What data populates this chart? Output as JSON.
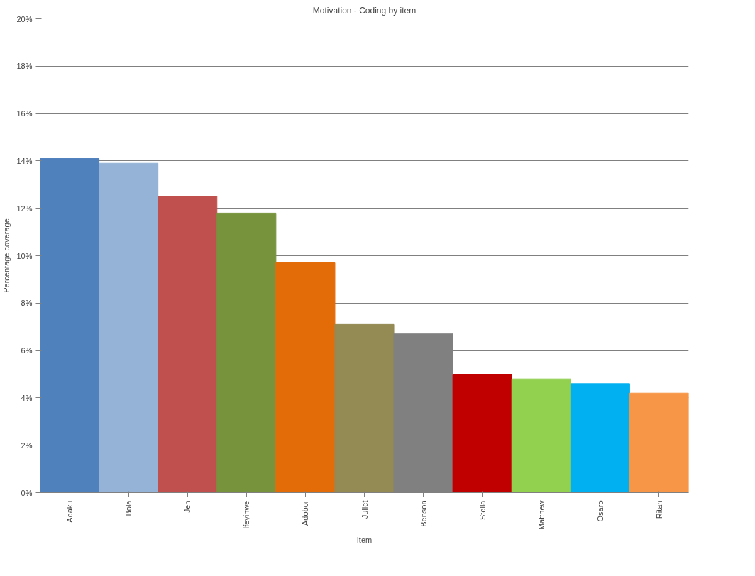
{
  "chart_data": {
    "type": "bar",
    "title": "Motivation - Coding by item",
    "xlabel": "Item",
    "ylabel": "Percentage coverage",
    "categories": [
      "Adaku",
      "Bola",
      "Jen",
      "Ifeyinwe",
      "Adobor",
      "Juliet",
      "Benson",
      "Stella",
      "Matthew",
      "Osaro",
      "Ritah"
    ],
    "values": [
      14.1,
      13.9,
      12.5,
      11.8,
      9.7,
      7.1,
      6.7,
      5.0,
      4.8,
      4.6,
      4.2
    ],
    "colors": [
      "#4f81bd",
      "#95b3d7",
      "#c0504d",
      "#77933c",
      "#e36c09",
      "#948a54",
      "#808080",
      "#c00000",
      "#92d050",
      "#00b0f0",
      "#f79646"
    ],
    "ylim": [
      0,
      20
    ],
    "yticks": [
      {
        "value": 0,
        "label": "0%"
      },
      {
        "value": 2,
        "label": "2%"
      },
      {
        "value": 4,
        "label": "4%"
      },
      {
        "value": 6,
        "label": "6%"
      },
      {
        "value": 8,
        "label": "8%"
      },
      {
        "value": 10,
        "label": "10%"
      },
      {
        "value": 12,
        "label": "12%"
      },
      {
        "value": 14,
        "label": "14%"
      },
      {
        "value": 16,
        "label": "16%"
      },
      {
        "value": 18,
        "label": "18%"
      },
      {
        "value": 20,
        "label": "20%"
      }
    ],
    "grid": "y"
  }
}
